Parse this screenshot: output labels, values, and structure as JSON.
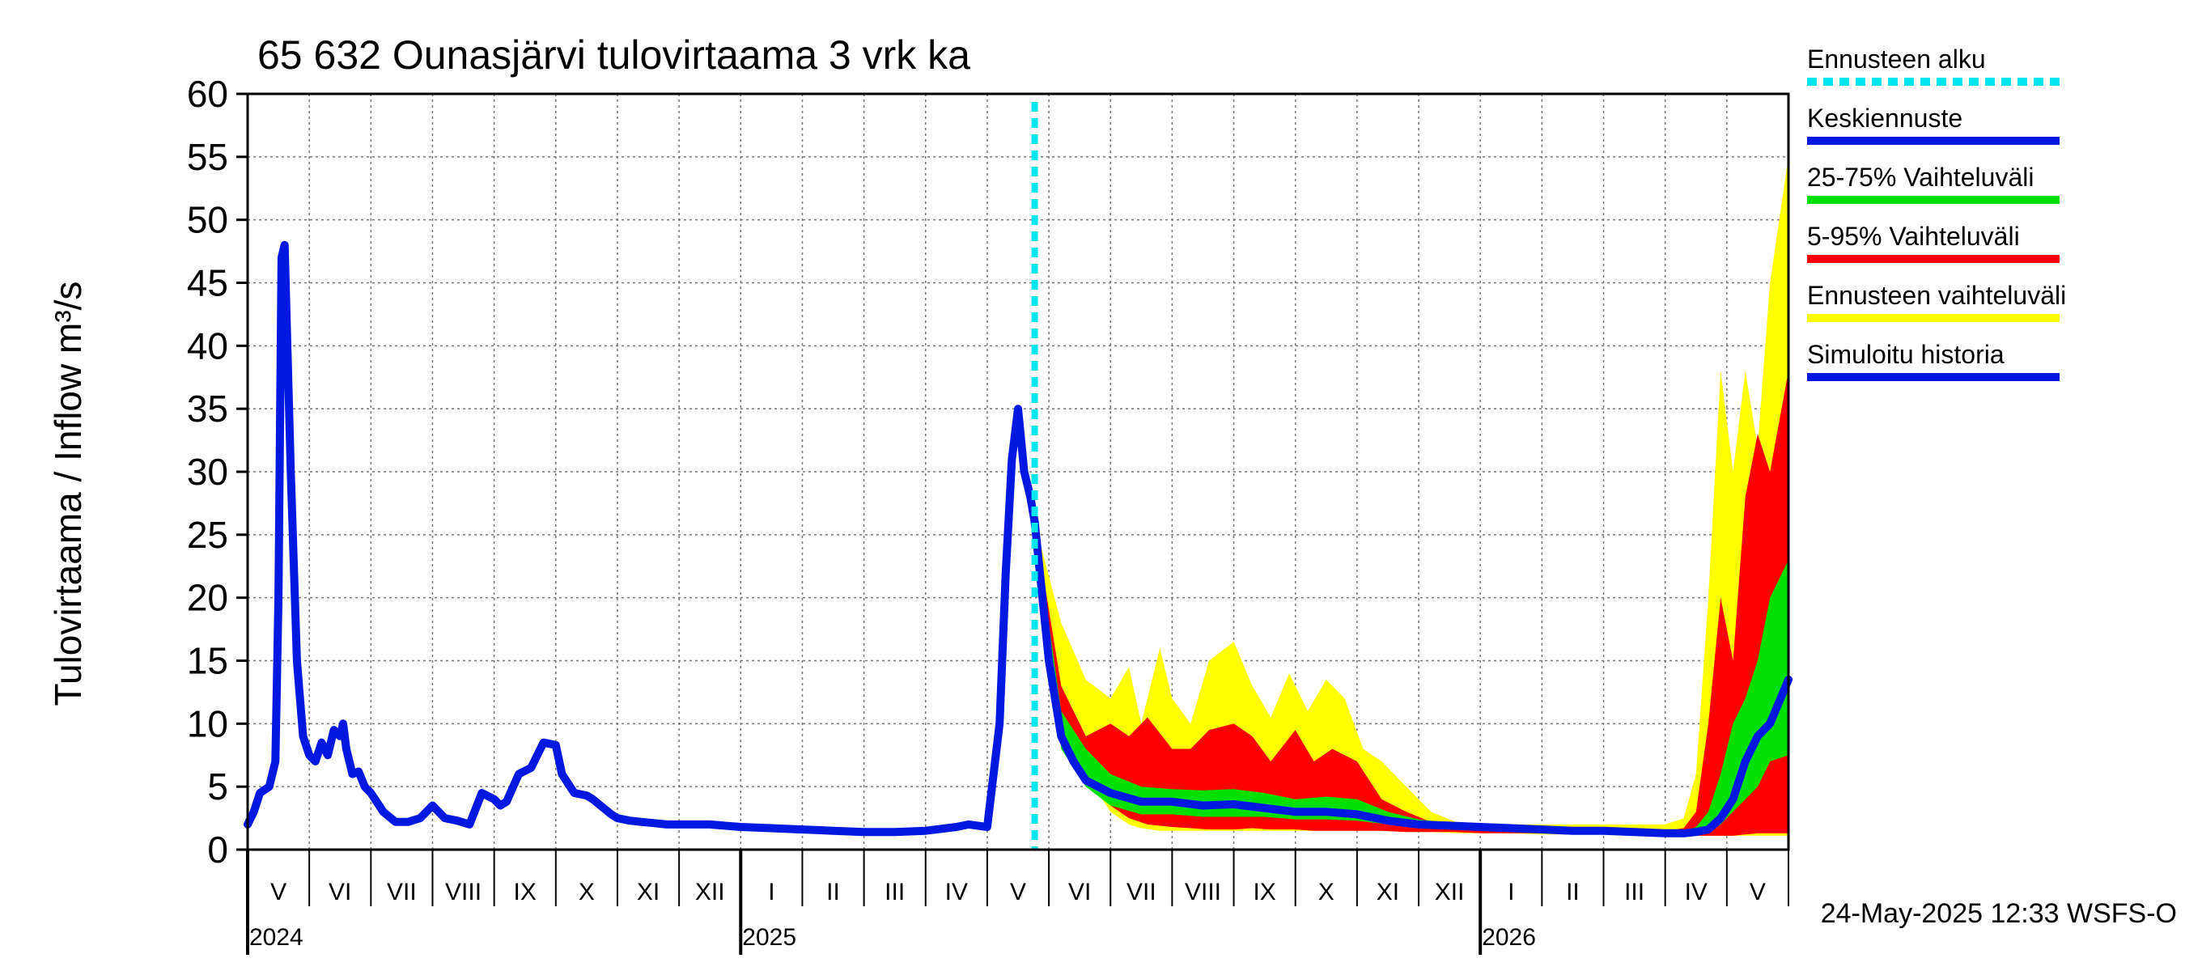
{
  "chart_data": {
    "type": "area",
    "title": "65 632 Ounasjärvi tulovirtaama 3 vrk ka",
    "ylabel": "Tulovirtaama / Inflow    m³/s",
    "ylim": [
      0,
      60
    ],
    "yticks": [
      "0",
      "5",
      "10",
      "15",
      "20",
      "25",
      "30",
      "35",
      "40",
      "45",
      "50",
      "55",
      "60"
    ],
    "x_range_months": [
      0,
      25
    ],
    "month_labels": [
      "V",
      "VI",
      "VII",
      "VIII",
      "IX",
      "X",
      "XI",
      "XII",
      "I",
      "II",
      "III",
      "IV",
      "V",
      "VI",
      "VII",
      "VIII",
      "IX",
      "X",
      "XI",
      "XII",
      "I",
      "II",
      "III",
      "IV",
      "V"
    ],
    "year_labels": [
      {
        "label": "2024",
        "at": 0
      },
      {
        "label": "2025",
        "at": 8
      },
      {
        "label": "2026",
        "at": 20
      }
    ],
    "forecast_start": 12.77,
    "legend": [
      {
        "label": "Ennusteen alku",
        "color": "#00e5ee",
        "style": "dotted"
      },
      {
        "label": "Keskiennuste",
        "color": "#0018e0",
        "style": "solid"
      },
      {
        "label": "25-75% Vaihteluväli",
        "color": "#00e000",
        "style": "solid"
      },
      {
        "label": "5-95% Vaihteluväli",
        "color": "#ff0000",
        "style": "solid"
      },
      {
        "label": "Ennusteen vaihteluväli",
        "color": "#ffff00",
        "style": "solid"
      },
      {
        "label": "Simuloitu historia",
        "color": "#0018e0",
        "style": "solid"
      }
    ],
    "footer": "24-May-2025 12:33 WSFS-O",
    "series": [
      {
        "name": "Simuloitu historia",
        "color": "#0018e0",
        "x": [
          0,
          0.1,
          0.2,
          0.35,
          0.45,
          0.5,
          0.55,
          0.6,
          0.7,
          0.8,
          0.9,
          1.0,
          1.1,
          1.2,
          1.3,
          1.4,
          1.5,
          1.55,
          1.6,
          1.7,
          1.8,
          1.9,
          2.0,
          2.2,
          2.4,
          2.6,
          2.8,
          3.0,
          3.2,
          3.4,
          3.6,
          3.8,
          4.0,
          4.1,
          4.2,
          4.4,
          4.6,
          4.8,
          5.0,
          5.1,
          5.3,
          5.5,
          5.6,
          5.8,
          5.9,
          6.0,
          6.2,
          6.4,
          6.6,
          6.8,
          7.0,
          7.5,
          8.0,
          8.5,
          9.0,
          9.5,
          10.0,
          10.5,
          11.0,
          11.5,
          11.7,
          12.0,
          12.2,
          12.3,
          12.4,
          12.5,
          12.6,
          12.7,
          12.77
        ],
        "y": [
          2,
          3,
          4.5,
          5,
          7,
          20,
          47,
          48,
          30,
          15,
          9,
          7.5,
          7,
          8.5,
          7.5,
          9.5,
          9,
          10,
          8,
          6,
          6.2,
          5,
          4.5,
          3,
          2.2,
          2.2,
          2.5,
          3.5,
          2.5,
          2.3,
          2.0,
          4.5,
          4.0,
          3.5,
          3.8,
          6,
          6.5,
          8.5,
          8.3,
          6,
          4.5,
          4.3,
          4,
          3.2,
          2.8,
          2.5,
          2.3,
          2.2,
          2.1,
          2.0,
          2.0,
          2.0,
          1.8,
          1.7,
          1.6,
          1.5,
          1.4,
          1.4,
          1.5,
          1.8,
          2.0,
          1.8,
          10,
          22,
          31,
          35,
          30,
          28,
          26
        ]
      },
      {
        "name": "Keskiennuste",
        "color": "#0018e0",
        "x": [
          12.77,
          13.0,
          13.2,
          13.4,
          13.6,
          14.0,
          14.5,
          15.0,
          15.5,
          16.0,
          16.5,
          17.0,
          17.5,
          18.0,
          18.5,
          19.0,
          19.5,
          20.0,
          20.5,
          21.0,
          21.5,
          22.0,
          22.5,
          23.0,
          23.3,
          23.5,
          23.7,
          23.9,
          24.1,
          24.3,
          24.5,
          24.7,
          25.0
        ],
        "y": [
          26,
          15,
          9,
          7,
          5.5,
          4.5,
          3.8,
          3.8,
          3.5,
          3.6,
          3.3,
          3.0,
          3.0,
          2.8,
          2.3,
          2.0,
          1.9,
          1.8,
          1.7,
          1.6,
          1.5,
          1.5,
          1.4,
          1.3,
          1.3,
          1.4,
          1.6,
          2.5,
          4,
          7,
          9,
          10,
          13.5
        ]
      }
    ],
    "bands": [
      {
        "name": "Ennusteen vaihteluväli",
        "color": "#ffff00",
        "x": [
          12.77,
          13.2,
          13.6,
          14.0,
          14.3,
          14.5,
          14.8,
          15.0,
          15.3,
          15.6,
          16.0,
          16.3,
          16.6,
          16.9,
          17.2,
          17.5,
          17.8,
          18.1,
          18.4,
          18.8,
          19.2,
          19.6,
          20.0,
          20.5,
          21.0,
          21.5,
          22.0,
          22.5,
          23.0,
          23.3,
          23.5,
          23.7,
          23.9,
          24.1,
          24.3,
          24.5,
          24.7,
          25.0
        ],
        "upper": [
          26,
          18,
          13.5,
          12,
          14.5,
          10,
          16,
          12,
          10,
          15,
          16.5,
          13,
          10.5,
          14,
          11,
          13.5,
          12,
          8,
          7,
          5,
          3,
          2.2,
          2,
          2,
          2,
          2,
          2,
          2,
          2,
          2.5,
          6,
          20,
          38,
          30,
          38,
          32,
          45,
          55
        ],
        "lower": [
          26,
          9,
          6,
          3,
          2,
          1.7,
          1.5,
          1.5,
          1.5,
          1.5,
          1.5,
          1.5,
          1.5,
          1.5,
          1.5,
          1.5,
          1.5,
          1.5,
          1.5,
          1.4,
          1.4,
          1.3,
          1.3,
          1.3,
          1.2,
          1.2,
          1.2,
          1.1,
          1.1,
          1.1,
          1.1,
          1.1,
          1.1,
          1.1,
          1.1,
          1.1,
          1.1,
          1.1
        ]
      },
      {
        "name": "5-95% Vaihteluväli",
        "color": "#ff0000",
        "x": [
          12.77,
          13.2,
          13.6,
          14.0,
          14.3,
          14.6,
          15.0,
          15.3,
          15.6,
          16.0,
          16.3,
          16.6,
          17.0,
          17.3,
          17.6,
          18.0,
          18.4,
          18.8,
          19.2,
          19.6,
          20.0,
          20.5,
          21.0,
          21.5,
          22.0,
          22.5,
          23.0,
          23.3,
          23.5,
          23.7,
          23.9,
          24.1,
          24.3,
          24.5,
          24.7,
          25.0
        ],
        "upper": [
          26,
          13,
          9,
          10,
          9,
          10.5,
          8,
          8,
          9.5,
          10,
          9,
          7,
          9.5,
          7,
          8,
          7,
          4,
          3,
          2.2,
          2,
          1.8,
          1.7,
          1.7,
          1.6,
          1.6,
          1.5,
          1.5,
          1.7,
          3,
          10,
          20,
          15,
          28,
          33,
          30,
          38
        ],
        "lower": [
          26,
          10,
          6,
          3.5,
          2.5,
          2,
          1.8,
          1.7,
          1.6,
          1.6,
          1.7,
          1.6,
          1.6,
          1.5,
          1.5,
          1.5,
          1.5,
          1.4,
          1.4,
          1.4,
          1.3,
          1.3,
          1.3,
          1.2,
          1.2,
          1.2,
          1.1,
          1.1,
          1.1,
          1.1,
          1.1,
          1.1,
          1.2,
          1.3,
          1.3,
          1.3
        ]
      },
      {
        "name": "25-75% Vaihteluväli",
        "color": "#00e000",
        "x": [
          12.77,
          13.2,
          13.6,
          14.0,
          14.5,
          15.0,
          15.5,
          16.0,
          16.5,
          17.0,
          17.5,
          18.0,
          18.5,
          19.0,
          19.5,
          20.0,
          20.5,
          21.0,
          21.5,
          22.0,
          22.5,
          23.0,
          23.3,
          23.5,
          23.7,
          23.9,
          24.1,
          24.3,
          24.5,
          24.7,
          25.0
        ],
        "upper": [
          26,
          11,
          8,
          6,
          5,
          4.8,
          4.7,
          4.8,
          4.5,
          4,
          4.2,
          4,
          3,
          2.4,
          2.1,
          1.9,
          1.8,
          1.7,
          1.6,
          1.5,
          1.5,
          1.4,
          1.4,
          1.8,
          3,
          6,
          10,
          12,
          15,
          20,
          23
        ],
        "lower": [
          26,
          8,
          5,
          3.5,
          2.8,
          2.8,
          2.6,
          2.6,
          2.6,
          2.4,
          2.4,
          2.3,
          2,
          1.8,
          1.7,
          1.6,
          1.6,
          1.5,
          1.4,
          1.4,
          1.3,
          1.3,
          1.3,
          1.3,
          1.4,
          2,
          3,
          4,
          5,
          7,
          7.5
        ]
      }
    ]
  }
}
